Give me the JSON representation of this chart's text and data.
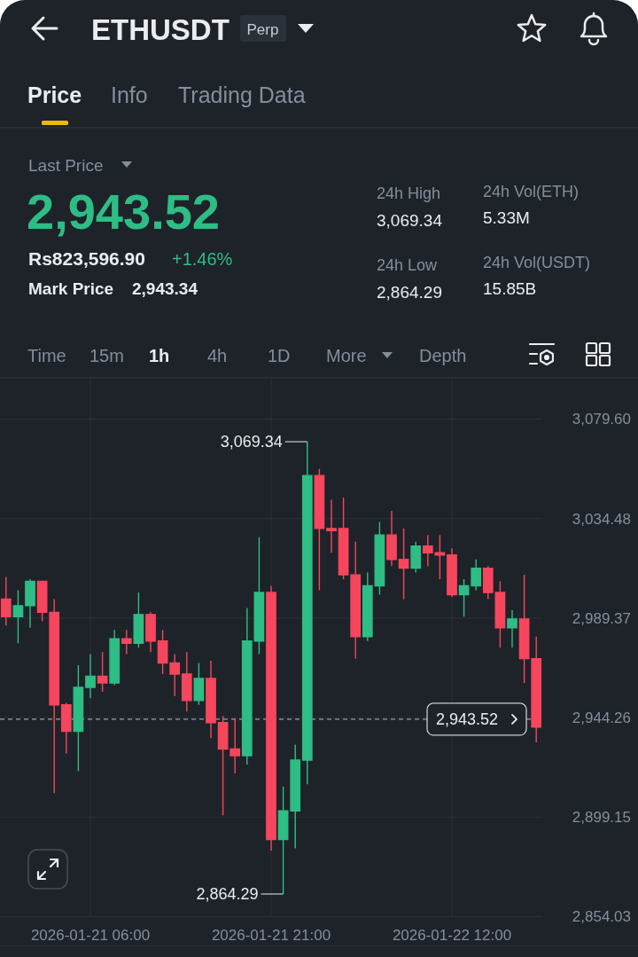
{
  "chart_data": {
    "type": "candlestick",
    "title": "ETHUSDT",
    "annotations": [
      "Perp",
      "Price",
      "Info",
      "Trading Data",
      "Last Price",
      "2,943.52",
      "Rs823,596.90",
      "+1.46%",
      "Mark Price",
      "2,943.34",
      "24h High",
      "3,069.34",
      "24h Low",
      "2,864.29",
      "24h Vol(ETH)",
      "5.33M",
      "24h Vol(USDT)",
      "15.85B",
      "Time",
      "15m",
      "1h",
      "4h",
      "1D",
      "More",
      "Depth",
      {
        "text": "3,069.34",
        "x": "2026-01-22T00:00",
        "y": 3069.34
      },
      {
        "text": "2,864.29",
        "x": "2026-01-21T22:00",
        "y": 2864.29
      }
    ],
    "x": [
      "2026-01-20T23:00",
      "2026-01-21T00:00",
      "2026-01-21T01:00",
      "2026-01-21T02:00",
      "2026-01-21T03:00",
      "2026-01-21T04:00",
      "2026-01-21T05:00",
      "2026-01-21T06:00",
      "2026-01-21T07:00",
      "2026-01-21T08:00",
      "2026-01-21T09:00",
      "2026-01-21T10:00",
      "2026-01-21T11:00",
      "2026-01-21T12:00",
      "2026-01-21T13:00",
      "2026-01-21T14:00",
      "2026-01-21T15:00",
      "2026-01-21T16:00",
      "2026-01-21T17:00",
      "2026-01-21T18:00",
      "2026-01-21T19:00",
      "2026-01-21T20:00",
      "2026-01-21T21:00",
      "2026-01-21T22:00",
      "2026-01-21T23:00",
      "2026-01-22T00:00",
      "2026-01-22T01:00",
      "2026-01-22T02:00",
      "2026-01-22T03:00",
      "2026-01-22T04:00",
      "2026-01-22T05:00",
      "2026-01-22T06:00",
      "2026-01-22T07:00",
      "2026-01-22T08:00",
      "2026-01-22T09:00",
      "2026-01-22T10:00",
      "2026-01-22T11:00",
      "2026-01-22T12:00",
      "2026-01-22T13:00",
      "2026-01-22T14:00",
      "2026-01-22T15:00",
      "2026-01-22T16:00",
      "2026-01-22T17:00",
      "2026-01-22T18:00",
      "2026-01-22T19:00"
    ],
    "ohlc": [
      [
        2998,
        3008,
        2986,
        2990
      ],
      [
        2990,
        3002,
        2978,
        2995
      ],
      [
        2995,
        3007,
        2985,
        3006
      ],
      [
        3006,
        3006,
        2988,
        2992
      ],
      [
        2992,
        2998,
        2910,
        2950
      ],
      [
        2950,
        2951,
        2928,
        2938
      ],
      [
        2938,
        2968,
        2920,
        2958
      ],
      [
        2958,
        2973,
        2953,
        2963
      ],
      [
        2963,
        2974,
        2956,
        2960
      ],
      [
        2960,
        2984,
        2959,
        2980
      ],
      [
        2980,
        2984,
        2973,
        2978
      ],
      [
        2978,
        3001,
        2976,
        2991
      ],
      [
        2991,
        2992,
        2974,
        2979
      ],
      [
        2979,
        2984,
        2964,
        2969
      ],
      [
        2969,
        2973,
        2954,
        2964
      ],
      [
        2964,
        2974,
        2947,
        2952
      ],
      [
        2952,
        2969,
        2950,
        2962
      ],
      [
        2962,
        2970,
        2935,
        2942
      ],
      [
        2942,
        2945,
        2900,
        2930
      ],
      [
        2930,
        2944,
        2919,
        2927
      ],
      [
        2927,
        2994,
        2923,
        2979
      ],
      [
        2979,
        3026,
        2973,
        3001
      ],
      [
        3001,
        3004,
        2884,
        2889
      ],
      [
        2889,
        2913,
        2864.29,
        2902
      ],
      [
        2902,
        2932,
        2885,
        2925
      ],
      [
        2925,
        3069.34,
        2914,
        3054
      ],
      [
        3054,
        3057,
        3002,
        3030
      ],
      [
        3030,
        3043,
        3019,
        3029
      ],
      [
        3030,
        3044,
        3007,
        3009
      ],
      [
        3009,
        3024,
        2971,
        2981
      ],
      [
        2981,
        3010,
        2979,
        3004
      ],
      [
        3004,
        3033,
        3000,
        3027
      ],
      [
        3027,
        3038,
        3013,
        3016
      ],
      [
        3016,
        3030,
        2998,
        3012
      ],
      [
        3012,
        3024,
        3010,
        3022
      ],
      [
        3022,
        3027,
        3013,
        3019
      ],
      [
        3019,
        3027,
        3007,
        3018
      ],
      [
        3018,
        3021,
        2999,
        3000
      ],
      [
        3000,
        3007,
        2990,
        3004
      ],
      [
        3004,
        3016,
        3002,
        3012
      ],
      [
        3012,
        3013,
        2998,
        3001
      ],
      [
        3001,
        3006,
        2976,
        2985
      ],
      [
        2985,
        2993,
        2976,
        2989
      ],
      [
        2989,
        3009,
        2960,
        2971
      ],
      [
        2971,
        2981,
        2933,
        2940
      ]
    ],
    "xlim": [
      "2026-01-20T22:30",
      "2026-01-22T19:30"
    ],
    "xticks": [
      {
        "value": "2026-01-21T06:00",
        "label": "2026-01-21 06:00"
      },
      {
        "value": "2026-01-21T21:00",
        "label": "2026-01-21 21:00"
      },
      {
        "value": "2026-01-22T12:00",
        "label": "2026-01-22 12:00"
      }
    ],
    "ylim": [
      2854.03,
      3098.3
    ],
    "yticks": [
      {
        "value": 2854.03,
        "label": "2,854.03"
      },
      {
        "value": 2899.15,
        "label": "2,899.15"
      },
      {
        "value": 2944.26,
        "label": "2,944.26"
      },
      {
        "value": 2989.37,
        "label": "2,989.37"
      },
      {
        "value": 3034.48,
        "label": "3,034.48"
      },
      {
        "value": 3079.6,
        "label": "3,079.60"
      }
    ],
    "grid": true,
    "ref_lines": [
      {
        "axis": "y",
        "value": 2943.52,
        "label": "2,943.52",
        "line_style": "dashed"
      }
    ]
  }
}
